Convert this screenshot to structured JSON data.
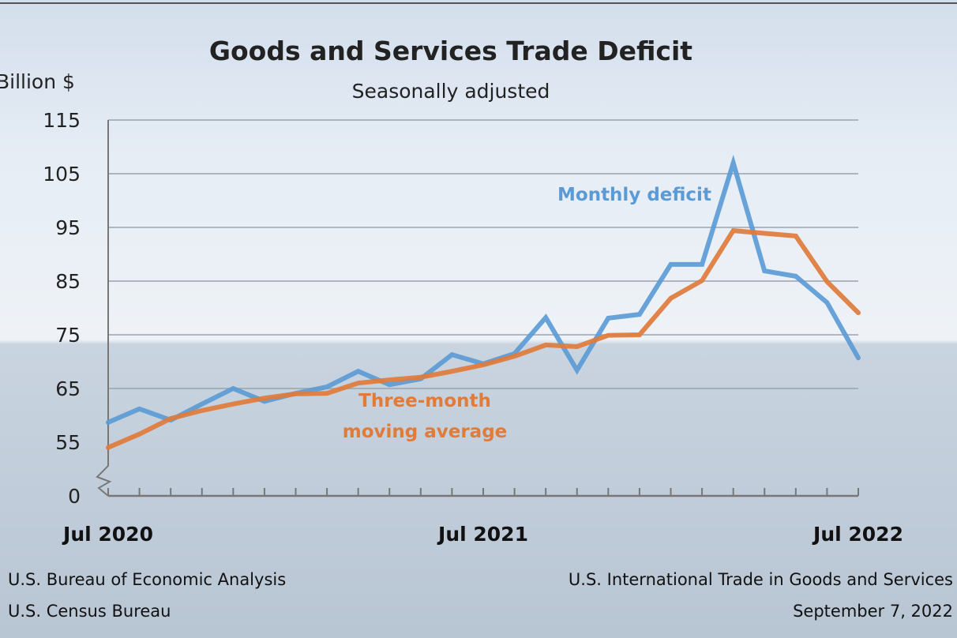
{
  "chart_data": {
    "type": "line",
    "title": "Goods and Services Trade Deficit",
    "subtitle": "Seasonally adjusted",
    "ylabel": "Billion $",
    "yticks": [
      0,
      55,
      65,
      75,
      85,
      95,
      105,
      115
    ],
    "ylim": [
      0,
      115
    ],
    "y_axis_break": "between 0 and 55",
    "xtick_labels": [
      "Jul 2020",
      "Jul 2021",
      "Jul 2022"
    ],
    "x": [
      "Jul 2020",
      "Aug 2020",
      "Sep 2020",
      "Oct 2020",
      "Nov 2020",
      "Dec 2020",
      "Jan 2021",
      "Feb 2021",
      "Mar 2021",
      "Apr 2021",
      "May 2021",
      "Jun 2021",
      "Jul 2021",
      "Aug 2021",
      "Sep 2021",
      "Oct 2021",
      "Nov 2021",
      "Dec 2021",
      "Jan 2022",
      "Feb 2022",
      "Mar 2022",
      "Apr 2022",
      "May 2022",
      "Jun 2022",
      "Jul 2022"
    ],
    "grid": "horizontal",
    "series": [
      {
        "name": "Monthly deficit",
        "color": "#5b9bd5",
        "values": [
          58.7,
          61.2,
          59.1,
          62.1,
          65.0,
          62.6,
          64.1,
          65.3,
          68.2,
          65.7,
          66.8,
          71.3,
          69.6,
          71.5,
          78.2,
          68.4,
          78.1,
          78.8,
          88.1,
          88.1,
          107.0,
          86.9,
          85.9,
          81.0,
          70.7
        ]
      },
      {
        "name": "Three-month moving average",
        "label_lines": [
          "Three-month",
          "moving average"
        ],
        "color": "#e07b39",
        "values": [
          54.0,
          56.5,
          59.4,
          60.9,
          62.1,
          63.2,
          64.0,
          64.1,
          66.0,
          66.6,
          67.1,
          68.2,
          69.4,
          71.0,
          73.1,
          72.8,
          74.9,
          75.0,
          81.8,
          85.1,
          94.4,
          93.9,
          93.4,
          84.9,
          79.1
        ]
      }
    ]
  },
  "footer": {
    "left": [
      "U.S. Bureau of Economic Analysis",
      "U.S. Census Bureau"
    ],
    "right": [
      "U.S. International Trade in Goods and Services",
      "September 7, 2022"
    ]
  }
}
